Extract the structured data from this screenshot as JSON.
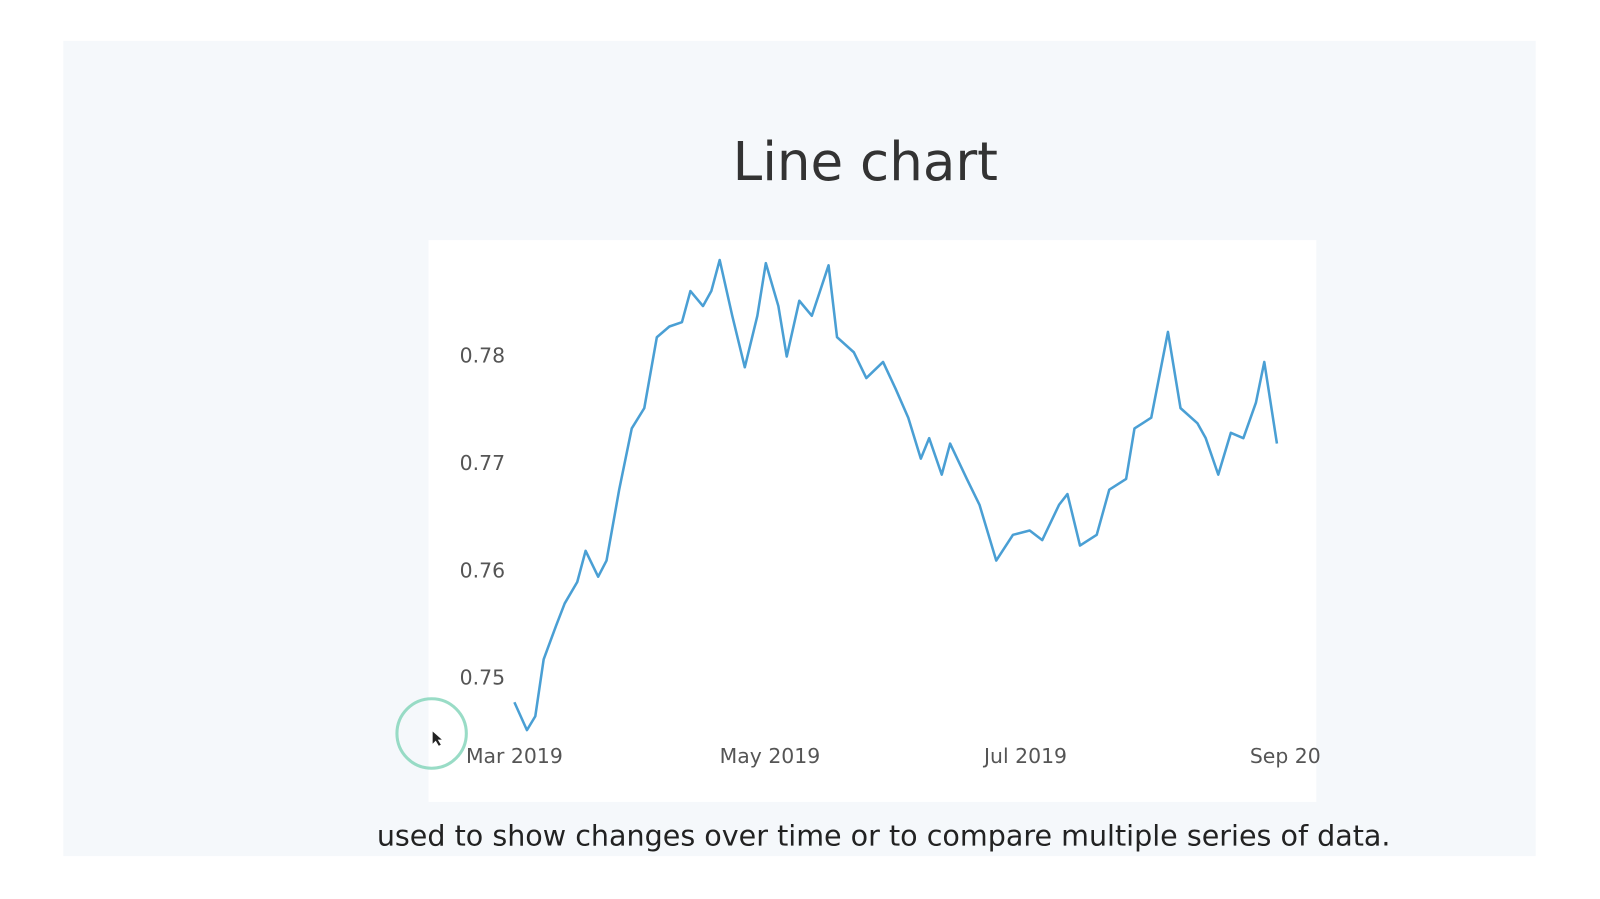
{
  "chart_data": {
    "type": "line",
    "title": "Line chart",
    "x": [
      "2019-03-01",
      "2019-03-04",
      "2019-03-06",
      "2019-03-08",
      "2019-03-11",
      "2019-03-13",
      "2019-03-16",
      "2019-03-18",
      "2019-03-21",
      "2019-03-23",
      "2019-03-26",
      "2019-03-29",
      "2019-04-01",
      "2019-04-04",
      "2019-04-07",
      "2019-04-10",
      "2019-04-12",
      "2019-04-15",
      "2019-04-17",
      "2019-04-19",
      "2019-04-22",
      "2019-04-25",
      "2019-04-28",
      "2019-04-30",
      "2019-05-03",
      "2019-05-05",
      "2019-05-08",
      "2019-05-11",
      "2019-05-15",
      "2019-05-17",
      "2019-05-21",
      "2019-05-24",
      "2019-05-28",
      "2019-05-31",
      "2019-06-03",
      "2019-06-06",
      "2019-06-08",
      "2019-06-11",
      "2019-06-13",
      "2019-06-17",
      "2019-06-20",
      "2019-06-24",
      "2019-06-28",
      "2019-07-02",
      "2019-07-05",
      "2019-07-09",
      "2019-07-11",
      "2019-07-14",
      "2019-07-18",
      "2019-07-21",
      "2019-07-25",
      "2019-07-27",
      "2019-07-31",
      "2019-08-04",
      "2019-08-07",
      "2019-08-11",
      "2019-08-13",
      "2019-08-16",
      "2019-08-19",
      "2019-08-22",
      "2019-08-25",
      "2019-08-27",
      "2019-08-30"
    ],
    "values": [
      0.7478,
      0.7452,
      0.7465,
      0.7518,
      0.755,
      0.757,
      0.759,
      0.7619,
      0.7595,
      0.761,
      0.7676,
      0.7733,
      0.7752,
      0.7818,
      0.7828,
      0.7832,
      0.7861,
      0.7847,
      0.7861,
      0.789,
      0.7838,
      0.779,
      0.7838,
      0.7887,
      0.7847,
      0.78,
      0.7852,
      0.7838,
      0.7885,
      0.7818,
      0.7804,
      0.778,
      0.7795,
      0.777,
      0.7743,
      0.7705,
      0.7724,
      0.769,
      0.7719,
      0.7686,
      0.7662,
      0.761,
      0.7634,
      0.7638,
      0.7629,
      0.7662,
      0.7672,
      0.7624,
      0.7634,
      0.7676,
      0.7686,
      0.7733,
      0.7743,
      0.7823,
      0.7752,
      0.7738,
      0.7724,
      0.769,
      0.7729,
      0.7724,
      0.7757,
      0.7795,
      0.7719
    ],
    "color": "#4a9fd4",
    "xlim": [
      "2019-02-28",
      "2019-09-05"
    ],
    "xticks": [
      {
        "value": "2019-03-01",
        "label": "Mar 2019"
      },
      {
        "value": "2019-05-01",
        "label": "May 2019"
      },
      {
        "value": "2019-07-01",
        "label": "Jul 2019"
      },
      {
        "value": "2019-09-01",
        "label": "Sep 20"
      }
    ],
    "ylim": [
      0.7447,
      0.7899
    ],
    "yticks": [
      0.75,
      0.76,
      0.77,
      0.78
    ],
    "grid": false
  },
  "caption": "used to show changes over time or to compare multiple series of data."
}
